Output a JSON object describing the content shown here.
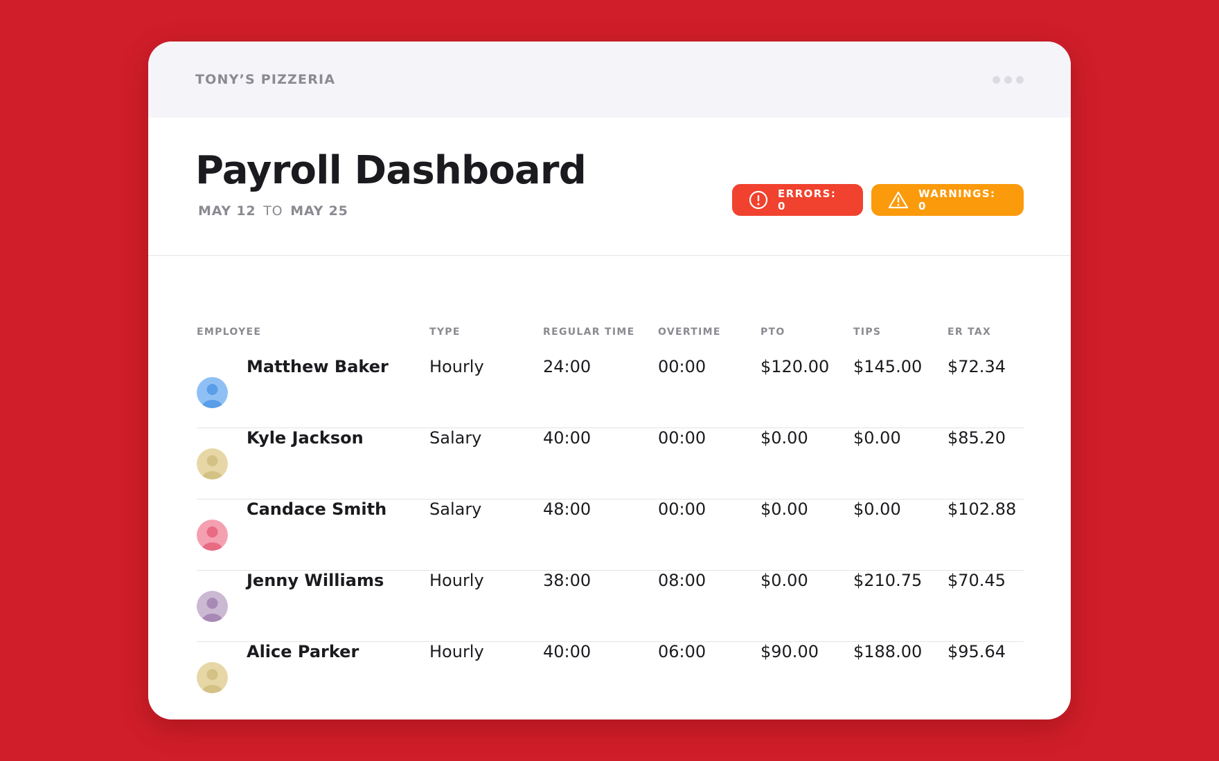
{
  "company": "TONY’S PIZZERIA",
  "title": "Payroll Dashboard",
  "range": {
    "from": "MAY 12",
    "to_word": "TO",
    "to": "MAY 25"
  },
  "badges": {
    "errors": "ERRORS: 0",
    "warnings": "WARNINGS: 0",
    "errors_color": "#f0422e",
    "warnings_color": "#fb9a0b"
  },
  "columns": [
    "EMPLOYEE",
    "TYPE",
    "REGULAR TIME",
    "OVERTIME",
    "PTO",
    "TIPS",
    "ER TAX"
  ],
  "employees": [
    {
      "name": "Matthew Baker",
      "type": "Hourly",
      "regular": "24:00",
      "overtime": "00:00",
      "pto": "$120.00",
      "tips": "$145.00",
      "er_tax": "$72.34",
      "avatar_bg": "#8fc0f5",
      "avatar_fg": "#5a9de8"
    },
    {
      "name": "Kyle Jackson",
      "type": "Salary",
      "regular": "40:00",
      "overtime": "00:00",
      "pto": "$0.00",
      "tips": "$0.00",
      "er_tax": "$85.20",
      "avatar_bg": "#e7d7a6",
      "avatar_fg": "#d4c185"
    },
    {
      "name": "Candace Smith",
      "type": "Salary",
      "regular": "48:00",
      "overtime": "00:00",
      "pto": "$0.00",
      "tips": "$0.00",
      "er_tax": "$102.88",
      "avatar_bg": "#f4a0b0",
      "avatar_fg": "#e86a83"
    },
    {
      "name": "Jenny Williams",
      "type": "Hourly",
      "regular": "38:00",
      "overtime": "08:00",
      "pto": "$0.00",
      "tips": "$210.75",
      "er_tax": "$70.45",
      "avatar_bg": "#cbb8d3",
      "avatar_fg": "#a888b4"
    },
    {
      "name": "Alice Parker",
      "type": "Hourly",
      "regular": "40:00",
      "overtime": "06:00",
      "pto": "$90.00",
      "tips": "$188.00",
      "er_tax": "$95.64",
      "avatar_bg": "#e7d7a6",
      "avatar_fg": "#d4c185"
    }
  ]
}
